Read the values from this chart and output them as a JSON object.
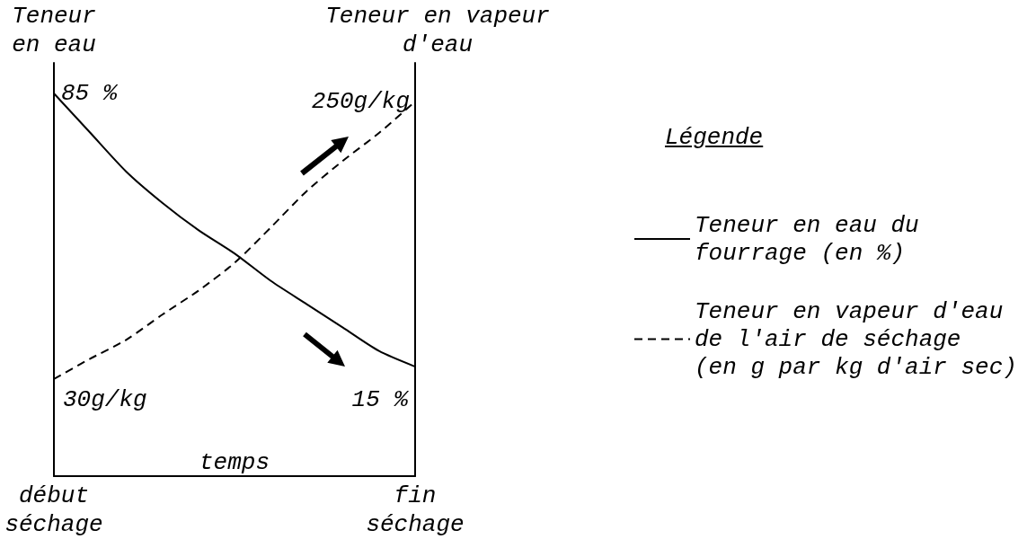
{
  "chart_data": {
    "type": "line",
    "xlabel": "temps",
    "ylabel": "Teneur en eau",
    "y2label": "Teneur en vapeur d'eau",
    "legend_title": "Légende",
    "categories": [
      "début séchage",
      null,
      null,
      null,
      null,
      null,
      null,
      null,
      null,
      null,
      "fin séchage"
    ],
    "series": [
      {
        "name": "Teneur en eau du fourrage (en %)",
        "color": "#000000",
        "line_style": "solid",
        "values": [
          85,
          75,
          65,
          57,
          50,
          44,
          37,
          31,
          25,
          19,
          15
        ],
        "value_labels": [
          "85 %",
          null,
          null,
          null,
          null,
          null,
          null,
          null,
          null,
          null,
          "15 %"
        ]
      },
      {
        "name": "Teneur en vapeur d'eau de l'air de séchage (en g par kg d'air sec)",
        "color": "#000000",
        "line_style": "dashed",
        "axis": "y2",
        "values": [
          30,
          46,
          61,
          81,
          100,
          122,
          150,
          179,
          203,
          225,
          250
        ],
        "value_labels": [
          "30g/kg",
          null,
          null,
          null,
          null,
          null,
          null,
          null,
          null,
          null,
          "250g/kg"
        ]
      }
    ],
    "legend": "right",
    "marker": "none",
    "tick_labels": "x"
  }
}
